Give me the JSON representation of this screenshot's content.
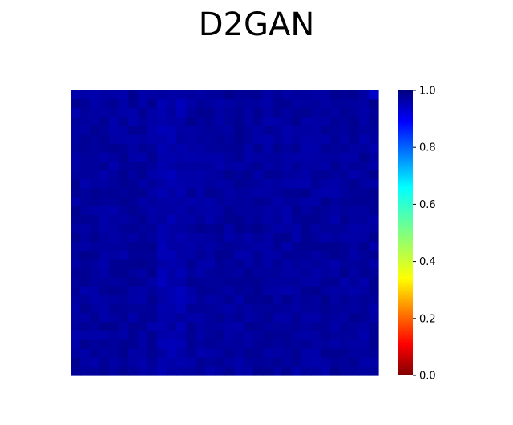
{
  "chart_data": {
    "type": "heatmap",
    "title": "D2GAN",
    "colormap": "jet (reversed): 0.0 = dark red, 0.2 = red, 0.4 = yellow, 0.6 = cyan, 0.8 = blue, 1.0 = dark blue",
    "colorbar": {
      "min": 0.0,
      "max": 1.0,
      "ticks": [
        0.0,
        0.2,
        0.4,
        0.6,
        0.8,
        1.0
      ],
      "tick_labels": [
        "0.0",
        "0.2",
        "0.4",
        "0.6",
        "0.8",
        "1.0"
      ],
      "placement": "right"
    },
    "axes_visible": false,
    "grid_rows": 32,
    "grid_cols": 32,
    "value_range_observed": [
      0.93,
      1.0
    ],
    "dominant_value": 0.97,
    "notes": "Nearly uniform dark-blue field with faint vertical stripes; values close to 1.0 throughout, slightly brighter blue cell at top-right corner."
  }
}
